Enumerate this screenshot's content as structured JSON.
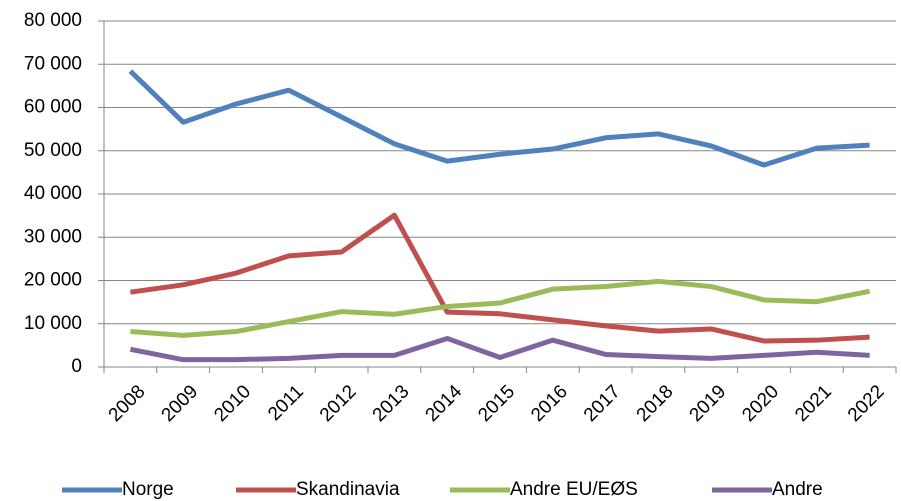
{
  "chart_data": {
    "type": "line",
    "categories": [
      "2008",
      "2009",
      "2010",
      "2011",
      "2012",
      "2013",
      "2014",
      "2015",
      "2016",
      "2017",
      "2018",
      "2019",
      "2020",
      "2021",
      "2022"
    ],
    "series": [
      {
        "name": "Norge",
        "color": "#4f81bd",
        "values": [
          68400,
          56600,
          60800,
          64000,
          57800,
          51600,
          47600,
          49200,
          50400,
          53000,
          53900,
          51100,
          46700,
          50600,
          51300
        ]
      },
      {
        "name": "Skandinavia",
        "color": "#c0504d",
        "values": [
          17300,
          19000,
          21700,
          25700,
          26600,
          35100,
          12700,
          12300,
          10900,
          9500,
          8300,
          8800,
          6000,
          6200,
          6900
        ]
      },
      {
        "name": "Andre EU/EØS",
        "color": "#9bbb59",
        "values": [
          8200,
          7300,
          8200,
          10500,
          12800,
          12200,
          14000,
          14800,
          18000,
          18600,
          19800,
          18600,
          15500,
          15100,
          17500
        ]
      },
      {
        "name": "Andre",
        "color": "#8064a2",
        "values": [
          4100,
          1700,
          1700,
          2000,
          2700,
          2700,
          6600,
          2200,
          6200,
          2900,
          2400,
          2000,
          2700,
          3400,
          2700
        ]
      }
    ],
    "ylim": [
      0,
      80000
    ],
    "yticks": [
      0,
      {
        "value": 10000,
        "label": "10 000"
      },
      {
        "value": 20000,
        "label": "20 000"
      },
      {
        "value": 30000,
        "label": "30 000"
      },
      {
        "value": 40000,
        "label": "40 000"
      },
      {
        "value": 50000,
        "label": "50 000"
      },
      {
        "value": 60000,
        "label": "60 000"
      },
      {
        "value": 70000,
        "label": "70 000"
      },
      {
        "value": 80000,
        "label": "80 000"
      }
    ],
    "grid": true,
    "legend": "bottom"
  }
}
